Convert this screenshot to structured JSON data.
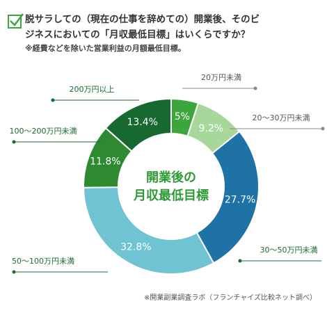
{
  "chart_data": {
    "type": "donut",
    "title_lines": [
      "脱サラしての（現在の仕事を辞めての）開業後、そのビ",
      "ジネスにおいての「月収最低目標」はいくらですか？"
    ],
    "subtitle": "※経費などを除いた営業利益の月額最低目標。",
    "center_label_lines": [
      "開業後の",
      "月収最低目標"
    ],
    "source": "※開業副業調査ラボ（フランチャイズ比較ネット調べ）",
    "categories": [
      "20万円未満",
      "20〜30万円未満",
      "30〜50万円未満",
      "50〜100万円未満",
      "100〜200万円未満",
      "200万円以上"
    ],
    "values": [
      5,
      9.2,
      27.7,
      32.8,
      11.8,
      13.4
    ],
    "value_labels": [
      "5%",
      "9.2%",
      "27.7%",
      "32.8%",
      "11.8%",
      "13.4%"
    ],
    "colors": [
      "#3da53d",
      "#a7d79b",
      "#1f72a5",
      "#6fc3d3",
      "#2e8a31",
      "#17692f"
    ]
  }
}
